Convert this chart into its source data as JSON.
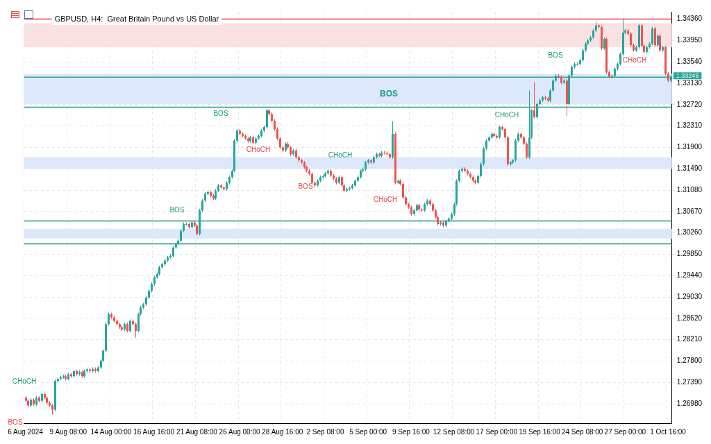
{
  "chart_data": {
    "type": "candlestick",
    "title": "GBPUSD, H4:  Great Britain Pound vs US Dollar",
    "categories": [
      "6 Aug 2024",
      null,
      null,
      null,
      null,
      null,
      null,
      null,
      null,
      null,
      null,
      null,
      null,
      null,
      null,
      null,
      "9 Aug 08:00",
      null,
      null,
      null,
      null,
      null,
      null,
      null,
      null,
      null,
      null,
      null,
      null,
      null,
      null,
      null,
      "14 Aug 00:00",
      null,
      null,
      null,
      null,
      null,
      null,
      null,
      null,
      null,
      null,
      null,
      null,
      null,
      null,
      null,
      "16 Aug 16:00",
      null,
      null,
      null,
      null,
      null,
      null,
      null,
      null,
      null,
      null,
      null,
      null,
      null,
      null,
      null,
      "21 Aug 08:00",
      null,
      null,
      null,
      null,
      null,
      null,
      null,
      null,
      null,
      null,
      null,
      null,
      null,
      null,
      null,
      "26 Aug 00:00",
      null,
      null,
      null,
      null,
      null,
      null,
      null,
      null,
      null,
      null,
      null,
      null,
      null,
      null,
      null,
      "28 Aug 16:00",
      null,
      null,
      null,
      null,
      null,
      null,
      null,
      null,
      null,
      null,
      null,
      null,
      null,
      null,
      null,
      "2 Sep 08:00",
      null,
      null,
      null,
      null,
      null,
      null,
      null,
      null,
      null,
      null,
      null,
      null,
      null,
      null,
      null,
      "5 Sep 00:00",
      null,
      null,
      null,
      null,
      null,
      null,
      null,
      null,
      null,
      null,
      null,
      null,
      null,
      null,
      null,
      "9 Sep 16:00",
      null,
      null,
      null,
      null,
      null,
      null,
      null,
      null,
      null,
      null,
      null,
      null,
      null,
      null,
      null,
      "12 Sep 08:00",
      null,
      null,
      null,
      null,
      null,
      null,
      null,
      null,
      null,
      null,
      null,
      null,
      null,
      null,
      null,
      "17 Sep 00:00",
      null,
      null,
      null,
      null,
      null,
      null,
      null,
      null,
      null,
      null,
      null,
      null,
      null,
      null,
      null,
      "19 Sep 16:00",
      null,
      null,
      null,
      null,
      null,
      null,
      null,
      null,
      null,
      null,
      null,
      null,
      null,
      null,
      null,
      "24 Sep 08:00",
      null,
      null,
      null,
      null,
      null,
      null,
      null,
      null,
      null,
      null,
      null,
      null,
      null,
      null,
      null,
      "27 Sep 00:00",
      null,
      null,
      null,
      null,
      null,
      null,
      null,
      null,
      null,
      null,
      null,
      null,
      null,
      null,
      null,
      "1 Oct 16:00",
      null
    ],
    "ohlc": [
      [
        1.271,
        1.2713,
        1.2701,
        1.2704
      ],
      [
        1.2704,
        1.2707,
        1.2692,
        1.2695
      ],
      [
        1.2695,
        1.2709,
        1.2692,
        1.2706
      ],
      [
        1.2706,
        1.2709,
        1.2694,
        1.2697
      ],
      [
        1.2697,
        1.2713,
        1.2694,
        1.271
      ],
      [
        1.271,
        1.2713,
        1.2701,
        1.2704
      ],
      [
        1.2704,
        1.272,
        1.2701,
        1.2717
      ],
      [
        1.2717,
        1.272,
        1.2707,
        1.271
      ],
      [
        1.271,
        1.2713,
        1.2697,
        1.27
      ],
      [
        1.27,
        1.2703,
        1.2692,
        1.2695
      ],
      [
        1.2695,
        1.2698,
        1.2678,
        1.2687
      ],
      [
        1.2687,
        1.2745,
        1.2684,
        1.2742
      ],
      [
        1.2742,
        1.2749,
        1.2739,
        1.2746
      ],
      [
        1.2746,
        1.2752,
        1.2743,
        1.2749
      ],
      [
        1.2749,
        1.2754,
        1.2746,
        1.2751
      ],
      [
        1.2751,
        1.2754,
        1.2743,
        1.2746
      ],
      [
        1.2746,
        1.2758,
        1.2743,
        1.2755
      ],
      [
        1.2755,
        1.2758,
        1.2748,
        1.2751
      ],
      [
        1.2751,
        1.2764,
        1.2748,
        1.2761
      ],
      [
        1.2761,
        1.2764,
        1.2752,
        1.2755
      ],
      [
        1.2755,
        1.2762,
        1.2752,
        1.2759
      ],
      [
        1.2759,
        1.2762,
        1.2748,
        1.2751
      ],
      [
        1.2751,
        1.2764,
        1.2748,
        1.2761
      ],
      [
        1.2761,
        1.2767,
        1.2758,
        1.2764
      ],
      [
        1.2764,
        1.2767,
        1.2758,
        1.2761
      ],
      [
        1.2761,
        1.2768,
        1.2758,
        1.2765
      ],
      [
        1.2765,
        1.2768,
        1.2758,
        1.2761
      ],
      [
        1.2761,
        1.2771,
        1.2758,
        1.2768
      ],
      [
        1.2768,
        1.2784,
        1.2765,
        1.2781
      ],
      [
        1.2781,
        1.2803,
        1.2778,
        1.28
      ],
      [
        1.28,
        1.2854,
        1.2797,
        1.2851
      ],
      [
        1.2851,
        1.2873,
        1.2848,
        1.287
      ],
      [
        1.287,
        1.2873,
        1.2861,
        1.2864
      ],
      [
        1.2864,
        1.2867,
        1.2854,
        1.2857
      ],
      [
        1.2857,
        1.286,
        1.2848,
        1.2851
      ],
      [
        1.2851,
        1.2854,
        1.2842,
        1.2845
      ],
      [
        1.2845,
        1.2848,
        1.2838,
        1.2841
      ],
      [
        1.2841,
        1.2854,
        1.2838,
        1.2851
      ],
      [
        1.2851,
        1.2854,
        1.2835,
        1.2838
      ],
      [
        1.2838,
        1.286,
        1.2835,
        1.2857
      ],
      [
        1.2857,
        1.286,
        1.2848,
        1.2851
      ],
      [
        1.2851,
        1.2854,
        1.2825,
        1.2838
      ],
      [
        1.2838,
        1.2873,
        1.2835,
        1.287
      ],
      [
        1.287,
        1.2886,
        1.2867,
        1.2883
      ],
      [
        1.2883,
        1.2892,
        1.288,
        1.2889
      ],
      [
        1.2889,
        1.2905,
        1.2886,
        1.2902
      ],
      [
        1.2902,
        1.2918,
        1.2899,
        1.2915
      ],
      [
        1.2915,
        1.2931,
        1.2912,
        1.2928
      ],
      [
        1.2928,
        1.2944,
        1.2925,
        1.2941
      ],
      [
        1.2941,
        1.295,
        1.2938,
        1.2947
      ],
      [
        1.2947,
        1.2963,
        1.2944,
        1.296
      ],
      [
        1.296,
        1.2969,
        1.2957,
        1.2966
      ],
      [
        1.2966,
        1.2976,
        1.2963,
        1.2973
      ],
      [
        1.2973,
        1.2982,
        1.297,
        1.2979
      ],
      [
        1.2979,
        1.2985,
        1.2976,
        1.2982
      ],
      [
        1.2982,
        1.3001,
        1.2979,
        1.2998
      ],
      [
        1.2998,
        1.3008,
        1.2995,
        1.3005
      ],
      [
        1.3005,
        1.3014,
        1.3002,
        1.3011
      ],
      [
        1.3011,
        1.3033,
        1.3008,
        1.303
      ],
      [
        1.303,
        1.3046,
        1.3027,
        1.3043
      ],
      [
        1.3043,
        1.3046,
        1.304,
        1.3043
      ],
      [
        1.3043,
        1.3046,
        1.3034,
        1.3037
      ],
      [
        1.3037,
        1.3049,
        1.3034,
        1.3046
      ],
      [
        1.3046,
        1.3049,
        1.3037,
        1.304
      ],
      [
        1.304,
        1.3043,
        1.3021,
        1.3024
      ],
      [
        1.3024,
        1.3072,
        1.3021,
        1.3069
      ],
      [
        1.3069,
        1.3091,
        1.3066,
        1.3088
      ],
      [
        1.3088,
        1.3104,
        1.3085,
        1.3101
      ],
      [
        1.3101,
        1.3107,
        1.3098,
        1.3104
      ],
      [
        1.3104,
        1.3107,
        1.3094,
        1.3097
      ],
      [
        1.3097,
        1.31,
        1.3089,
        1.3092
      ],
      [
        1.3092,
        1.311,
        1.3089,
        1.3107
      ],
      [
        1.3107,
        1.312,
        1.3104,
        1.3117
      ],
      [
        1.3117,
        1.312,
        1.311,
        1.3113
      ],
      [
        1.3113,
        1.3116,
        1.3107,
        1.311
      ],
      [
        1.311,
        1.3125,
        1.3107,
        1.3122
      ],
      [
        1.3122,
        1.3136,
        1.3119,
        1.3133
      ],
      [
        1.3133,
        1.3148,
        1.313,
        1.3145
      ],
      [
        1.3145,
        1.3206,
        1.3142,
        1.3203
      ],
      [
        1.3203,
        1.3225,
        1.32,
        1.3222
      ],
      [
        1.3222,
        1.3225,
        1.3213,
        1.3216
      ],
      [
        1.3216,
        1.3219,
        1.3209,
        1.3212
      ],
      [
        1.3212,
        1.3215,
        1.3204,
        1.3207
      ],
      [
        1.3207,
        1.321,
        1.3199,
        1.3202
      ],
      [
        1.3202,
        1.3212,
        1.3199,
        1.3209
      ],
      [
        1.3209,
        1.3212,
        1.3196,
        1.3199
      ],
      [
        1.3199,
        1.321,
        1.3196,
        1.3207
      ],
      [
        1.3207,
        1.3215,
        1.3204,
        1.3212
      ],
      [
        1.3212,
        1.3225,
        1.3209,
        1.3222
      ],
      [
        1.3222,
        1.3232,
        1.3219,
        1.3229
      ],
      [
        1.3229,
        1.3264,
        1.3226,
        1.3261
      ],
      [
        1.3261,
        1.3264,
        1.3251,
        1.3254
      ],
      [
        1.3254,
        1.3257,
        1.3238,
        1.3241
      ],
      [
        1.3241,
        1.3244,
        1.3222,
        1.3225
      ],
      [
        1.3225,
        1.3228,
        1.3204,
        1.3207
      ],
      [
        1.3207,
        1.321,
        1.3187,
        1.319
      ],
      [
        1.319,
        1.3193,
        1.3181,
        1.3184
      ],
      [
        1.3184,
        1.32,
        1.3181,
        1.3197
      ],
      [
        1.3197,
        1.32,
        1.3187,
        1.319
      ],
      [
        1.319,
        1.3193,
        1.3174,
        1.3177
      ],
      [
        1.3177,
        1.3187,
        1.3174,
        1.3184
      ],
      [
        1.3184,
        1.3187,
        1.3168,
        1.3171
      ],
      [
        1.3171,
        1.3174,
        1.3162,
        1.3165
      ],
      [
        1.3165,
        1.3168,
        1.3158,
        1.3161
      ],
      [
        1.3161,
        1.3164,
        1.3149,
        1.3152
      ],
      [
        1.3152,
        1.3155,
        1.3142,
        1.3145
      ],
      [
        1.3145,
        1.3148,
        1.3136,
        1.3139
      ],
      [
        1.3139,
        1.3142,
        1.3119,
        1.3122
      ],
      [
        1.3122,
        1.3125,
        1.3114,
        1.3117
      ],
      [
        1.3117,
        1.3129,
        1.3114,
        1.3126
      ],
      [
        1.3126,
        1.3136,
        1.3123,
        1.3133
      ],
      [
        1.3133,
        1.3138,
        1.313,
        1.3135
      ],
      [
        1.3135,
        1.3143,
        1.3132,
        1.314
      ],
      [
        1.314,
        1.3148,
        1.3137,
        1.3145
      ],
      [
        1.3145,
        1.3148,
        1.3133,
        1.3136
      ],
      [
        1.3136,
        1.3139,
        1.3127,
        1.313
      ],
      [
        1.313,
        1.3133,
        1.3119,
        1.3122
      ],
      [
        1.3122,
        1.3136,
        1.3119,
        1.3133
      ],
      [
        1.3133,
        1.3136,
        1.3114,
        1.3117
      ],
      [
        1.3117,
        1.312,
        1.3104,
        1.3107
      ],
      [
        1.3107,
        1.3113,
        1.3104,
        1.311
      ],
      [
        1.311,
        1.3115,
        1.3107,
        1.3112
      ],
      [
        1.3112,
        1.312,
        1.3109,
        1.3117
      ],
      [
        1.3117,
        1.3129,
        1.3114,
        1.3126
      ],
      [
        1.3126,
        1.3136,
        1.3123,
        1.3133
      ],
      [
        1.3133,
        1.3148,
        1.313,
        1.3145
      ],
      [
        1.3145,
        1.3151,
        1.3142,
        1.3148
      ],
      [
        1.3148,
        1.3164,
        1.3145,
        1.3161
      ],
      [
        1.3161,
        1.3168,
        1.3158,
        1.3165
      ],
      [
        1.3165,
        1.3168,
        1.3158,
        1.3161
      ],
      [
        1.3161,
        1.3174,
        1.3158,
        1.3171
      ],
      [
        1.3171,
        1.318,
        1.3168,
        1.3177
      ],
      [
        1.3177,
        1.318,
        1.3171,
        1.3174
      ],
      [
        1.3174,
        1.3183,
        1.3171,
        1.318
      ],
      [
        1.318,
        1.3183,
        1.3176,
        1.3179
      ],
      [
        1.3179,
        1.3182,
        1.3174,
        1.3177
      ],
      [
        1.3177,
        1.318,
        1.3168,
        1.3171
      ],
      [
        1.3171,
        1.324,
        1.3168,
        1.3216
      ],
      [
        1.3216,
        1.3219,
        1.3119,
        1.3122
      ],
      [
        1.3122,
        1.3129,
        1.3119,
        1.3126
      ],
      [
        1.3126,
        1.3129,
        1.3117,
        1.312
      ],
      [
        1.312,
        1.3123,
        1.3091,
        1.3094
      ],
      [
        1.3094,
        1.3097,
        1.3078,
        1.3081
      ],
      [
        1.3081,
        1.3084,
        1.3072,
        1.3075
      ],
      [
        1.3075,
        1.3078,
        1.3059,
        1.3062
      ],
      [
        1.3062,
        1.3072,
        1.3059,
        1.3069
      ],
      [
        1.3069,
        1.3082,
        1.3066,
        1.3079
      ],
      [
        1.3079,
        1.3082,
        1.3068,
        1.3071
      ],
      [
        1.3071,
        1.3074,
        1.3066,
        1.3069
      ],
      [
        1.3069,
        1.3084,
        1.3066,
        1.3081
      ],
      [
        1.3081,
        1.3091,
        1.3078,
        1.3088
      ],
      [
        1.3088,
        1.3091,
        1.3078,
        1.3081
      ],
      [
        1.3081,
        1.3084,
        1.3066,
        1.3069
      ],
      [
        1.3069,
        1.3072,
        1.3053,
        1.3056
      ],
      [
        1.3056,
        1.3059,
        1.304,
        1.3043
      ],
      [
        1.3043,
        1.3049,
        1.304,
        1.3046
      ],
      [
        1.3046,
        1.3049,
        1.3037,
        1.304
      ],
      [
        1.304,
        1.3052,
        1.3037,
        1.3049
      ],
      [
        1.3049,
        1.3056,
        1.3046,
        1.3053
      ],
      [
        1.3053,
        1.3065,
        1.305,
        1.3062
      ],
      [
        1.3062,
        1.3084,
        1.3059,
        1.3081
      ],
      [
        1.3081,
        1.3129,
        1.3078,
        1.3126
      ],
      [
        1.3126,
        1.3148,
        1.3123,
        1.3145
      ],
      [
        1.3145,
        1.3152,
        1.3142,
        1.3149
      ],
      [
        1.3149,
        1.3152,
        1.3142,
        1.3145
      ],
      [
        1.3145,
        1.3148,
        1.3136,
        1.3139
      ],
      [
        1.3139,
        1.3142,
        1.313,
        1.3133
      ],
      [
        1.3133,
        1.3136,
        1.3123,
        1.3126
      ],
      [
        1.3126,
        1.3129,
        1.3119,
        1.3122
      ],
      [
        1.3122,
        1.3138,
        1.3119,
        1.3135
      ],
      [
        1.3135,
        1.3161,
        1.3132,
        1.3158
      ],
      [
        1.3158,
        1.3191,
        1.3155,
        1.3188
      ],
      [
        1.3188,
        1.3206,
        1.3185,
        1.3203
      ],
      [
        1.3203,
        1.3212,
        1.32,
        1.3209
      ],
      [
        1.3209,
        1.3219,
        1.3206,
        1.3216
      ],
      [
        1.3216,
        1.3219,
        1.3209,
        1.3212
      ],
      [
        1.3212,
        1.3215,
        1.3206,
        1.3209
      ],
      [
        1.3209,
        1.3232,
        1.3206,
        1.3229
      ],
      [
        1.3229,
        1.3232,
        1.3222,
        1.3225
      ],
      [
        1.3225,
        1.3228,
        1.3206,
        1.3209
      ],
      [
        1.3209,
        1.3212,
        1.3155,
        1.3158
      ],
      [
        1.3158,
        1.3164,
        1.3155,
        1.3161
      ],
      [
        1.3161,
        1.3168,
        1.3158,
        1.3165
      ],
      [
        1.3165,
        1.3206,
        1.3162,
        1.3203
      ],
      [
        1.3203,
        1.3219,
        1.32,
        1.3216
      ],
      [
        1.3216,
        1.3219,
        1.3206,
        1.3209
      ],
      [
        1.3209,
        1.3212,
        1.3194,
        1.3197
      ],
      [
        1.3197,
        1.32,
        1.3168,
        1.3171
      ],
      [
        1.3171,
        1.3299,
        1.3168,
        1.3209
      ],
      [
        1.3209,
        1.3264,
        1.3206,
        1.3261
      ],
      [
        1.3261,
        1.3315,
        1.3245,
        1.3248
      ],
      [
        1.3248,
        1.3276,
        1.3245,
        1.3273
      ],
      [
        1.3273,
        1.3283,
        1.327,
        1.328
      ],
      [
        1.328,
        1.3289,
        1.3277,
        1.3286
      ],
      [
        1.3286,
        1.3289,
        1.3281,
        1.3284
      ],
      [
        1.3284,
        1.3287,
        1.3277,
        1.328
      ],
      [
        1.328,
        1.3302,
        1.3277,
        1.3299
      ],
      [
        1.3299,
        1.3321,
        1.3296,
        1.3318
      ],
      [
        1.3318,
        1.333,
        1.3315,
        1.3327
      ],
      [
        1.3327,
        1.333,
        1.3322,
        1.3325
      ],
      [
        1.3325,
        1.3328,
        1.3311,
        1.3314
      ],
      [
        1.3314,
        1.3321,
        1.3311,
        1.3318
      ],
      [
        1.3318,
        1.3321,
        1.325,
        1.3273
      ],
      [
        1.3273,
        1.3331,
        1.327,
        1.3328
      ],
      [
        1.3328,
        1.3347,
        1.3325,
        1.3344
      ],
      [
        1.3344,
        1.3353,
        1.3341,
        1.335
      ],
      [
        1.335,
        1.3353,
        1.3347,
        1.335
      ],
      [
        1.335,
        1.336,
        1.3347,
        1.3357
      ],
      [
        1.3357,
        1.3379,
        1.3354,
        1.3376
      ],
      [
        1.3376,
        1.3392,
        1.3373,
        1.3389
      ],
      [
        1.3389,
        1.3398,
        1.3386,
        1.3395
      ],
      [
        1.3395,
        1.3404,
        1.3392,
        1.3401
      ],
      [
        1.3401,
        1.3417,
        1.3398,
        1.3414
      ],
      [
        1.3414,
        1.3431,
        1.3411,
        1.3424
      ],
      [
        1.3424,
        1.3427,
        1.3418,
        1.3421
      ],
      [
        1.3421,
        1.3424,
        1.3377,
        1.338
      ],
      [
        1.338,
        1.3401,
        1.3377,
        1.3398
      ],
      [
        1.3398,
        1.3401,
        1.3331,
        1.3334
      ],
      [
        1.3334,
        1.3337,
        1.3322,
        1.3325
      ],
      [
        1.3325,
        1.333,
        1.3322,
        1.3327
      ],
      [
        1.3327,
        1.3344,
        1.3324,
        1.3341
      ],
      [
        1.3341,
        1.3353,
        1.3338,
        1.335
      ],
      [
        1.335,
        1.3372,
        1.3347,
        1.3369
      ],
      [
        1.3369,
        1.3436,
        1.3366,
        1.341
      ],
      [
        1.341,
        1.3417,
        1.3407,
        1.3414
      ],
      [
        1.3414,
        1.3417,
        1.3405,
        1.3408
      ],
      [
        1.3408,
        1.3411,
        1.3383,
        1.3386
      ],
      [
        1.3386,
        1.3389,
        1.3373,
        1.3376
      ],
      [
        1.3376,
        1.3385,
        1.3373,
        1.3382
      ],
      [
        1.3382,
        1.3427,
        1.3379,
        1.3424
      ],
      [
        1.3424,
        1.3427,
        1.3382,
        1.3385
      ],
      [
        1.3385,
        1.3388,
        1.337,
        1.3373
      ],
      [
        1.3373,
        1.3385,
        1.337,
        1.3382
      ],
      [
        1.3382,
        1.3392,
        1.3379,
        1.3389
      ],
      [
        1.3389,
        1.3421,
        1.3386,
        1.3418
      ],
      [
        1.3418,
        1.3421,
        1.3383,
        1.3386
      ],
      [
        1.3386,
        1.3407,
        1.3383,
        1.3404
      ],
      [
        1.3404,
        1.3407,
        1.3373,
        1.3376
      ],
      [
        1.3376,
        1.3385,
        1.3373,
        1.3382
      ],
      [
        1.3382,
        1.3385,
        1.3328,
        1.3331
      ],
      [
        1.3331,
        1.3334,
        1.3315,
        1.3318
      ],
      [
        1.3318,
        1.3328,
        1.3315,
        1.3325
      ]
    ],
    "ylim": [
      1.2661,
      1.345
    ],
    "yticks": [
      {
        "value": 1.2698,
        "label": "1.26980"
      },
      {
        "value": 1.2739,
        "label": "1.27390"
      },
      {
        "value": 1.278,
        "label": "1.27800"
      },
      {
        "value": 1.2821,
        "label": "1.28210"
      },
      {
        "value": 1.2862,
        "label": "1.28620"
      },
      {
        "value": 1.2903,
        "label": "1.29030"
      },
      {
        "value": 1.2944,
        "label": "1.29440"
      },
      {
        "value": 1.2985,
        "label": "1.29850"
      },
      {
        "value": 1.3026,
        "label": "1.30260"
      },
      {
        "value": 1.3067,
        "label": "1.30670"
      },
      {
        "value": 1.3108,
        "label": "1.31080"
      },
      {
        "value": 1.3149,
        "label": "1.31490"
      },
      {
        "value": 1.319,
        "label": "1.31900"
      },
      {
        "value": 1.3231,
        "label": "1.32310"
      },
      {
        "value": 1.3272,
        "label": "1.32720"
      },
      {
        "value": 1.3313,
        "label": "1.33130"
      },
      {
        "value": 1.3354,
        "label": "1.33540"
      },
      {
        "value": 1.3395,
        "label": "1.33950"
      },
      {
        "value": 1.3436,
        "label": "1.34360"
      }
    ],
    "grid": true,
    "legend": false,
    "ref_lines": [
      {
        "axis": "y",
        "value": 1.3267,
        "color": "#1a9b7c"
      },
      {
        "axis": "y",
        "value": 1.3049,
        "color": "#1a9b7c"
      },
      {
        "axis": "y",
        "value": 1.3005,
        "color": "#1a9b7c"
      },
      {
        "axis": "y",
        "value": 1.3436,
        "color": "#e8414a"
      },
      {
        "axis": "y",
        "value": 1.33246,
        "label": "1.33246",
        "color": "#26a69a"
      }
    ],
    "bands": [
      {
        "axis": "y",
        "from": 1.3015,
        "to": 1.3034,
        "color": "#dde8fb"
      },
      {
        "axis": "y",
        "from": 1.3149,
        "to": 1.3171,
        "color": "#dde8fb"
      },
      {
        "axis": "y",
        "from": 1.3273,
        "to": 1.3331,
        "color": "#dde8fb"
      },
      {
        "axis": "y",
        "from": 1.3382,
        "to": 1.3428,
        "color": "#fbe2e2"
      }
    ],
    "annotations": [
      "CHoCH",
      "BOS",
      "BOS",
      "BOS",
      "CHoCH",
      "BOS",
      "CHoCH",
      "CHoCH",
      "BOS",
      "CHoCH",
      "BOS",
      "CHoCH"
    ]
  }
}
